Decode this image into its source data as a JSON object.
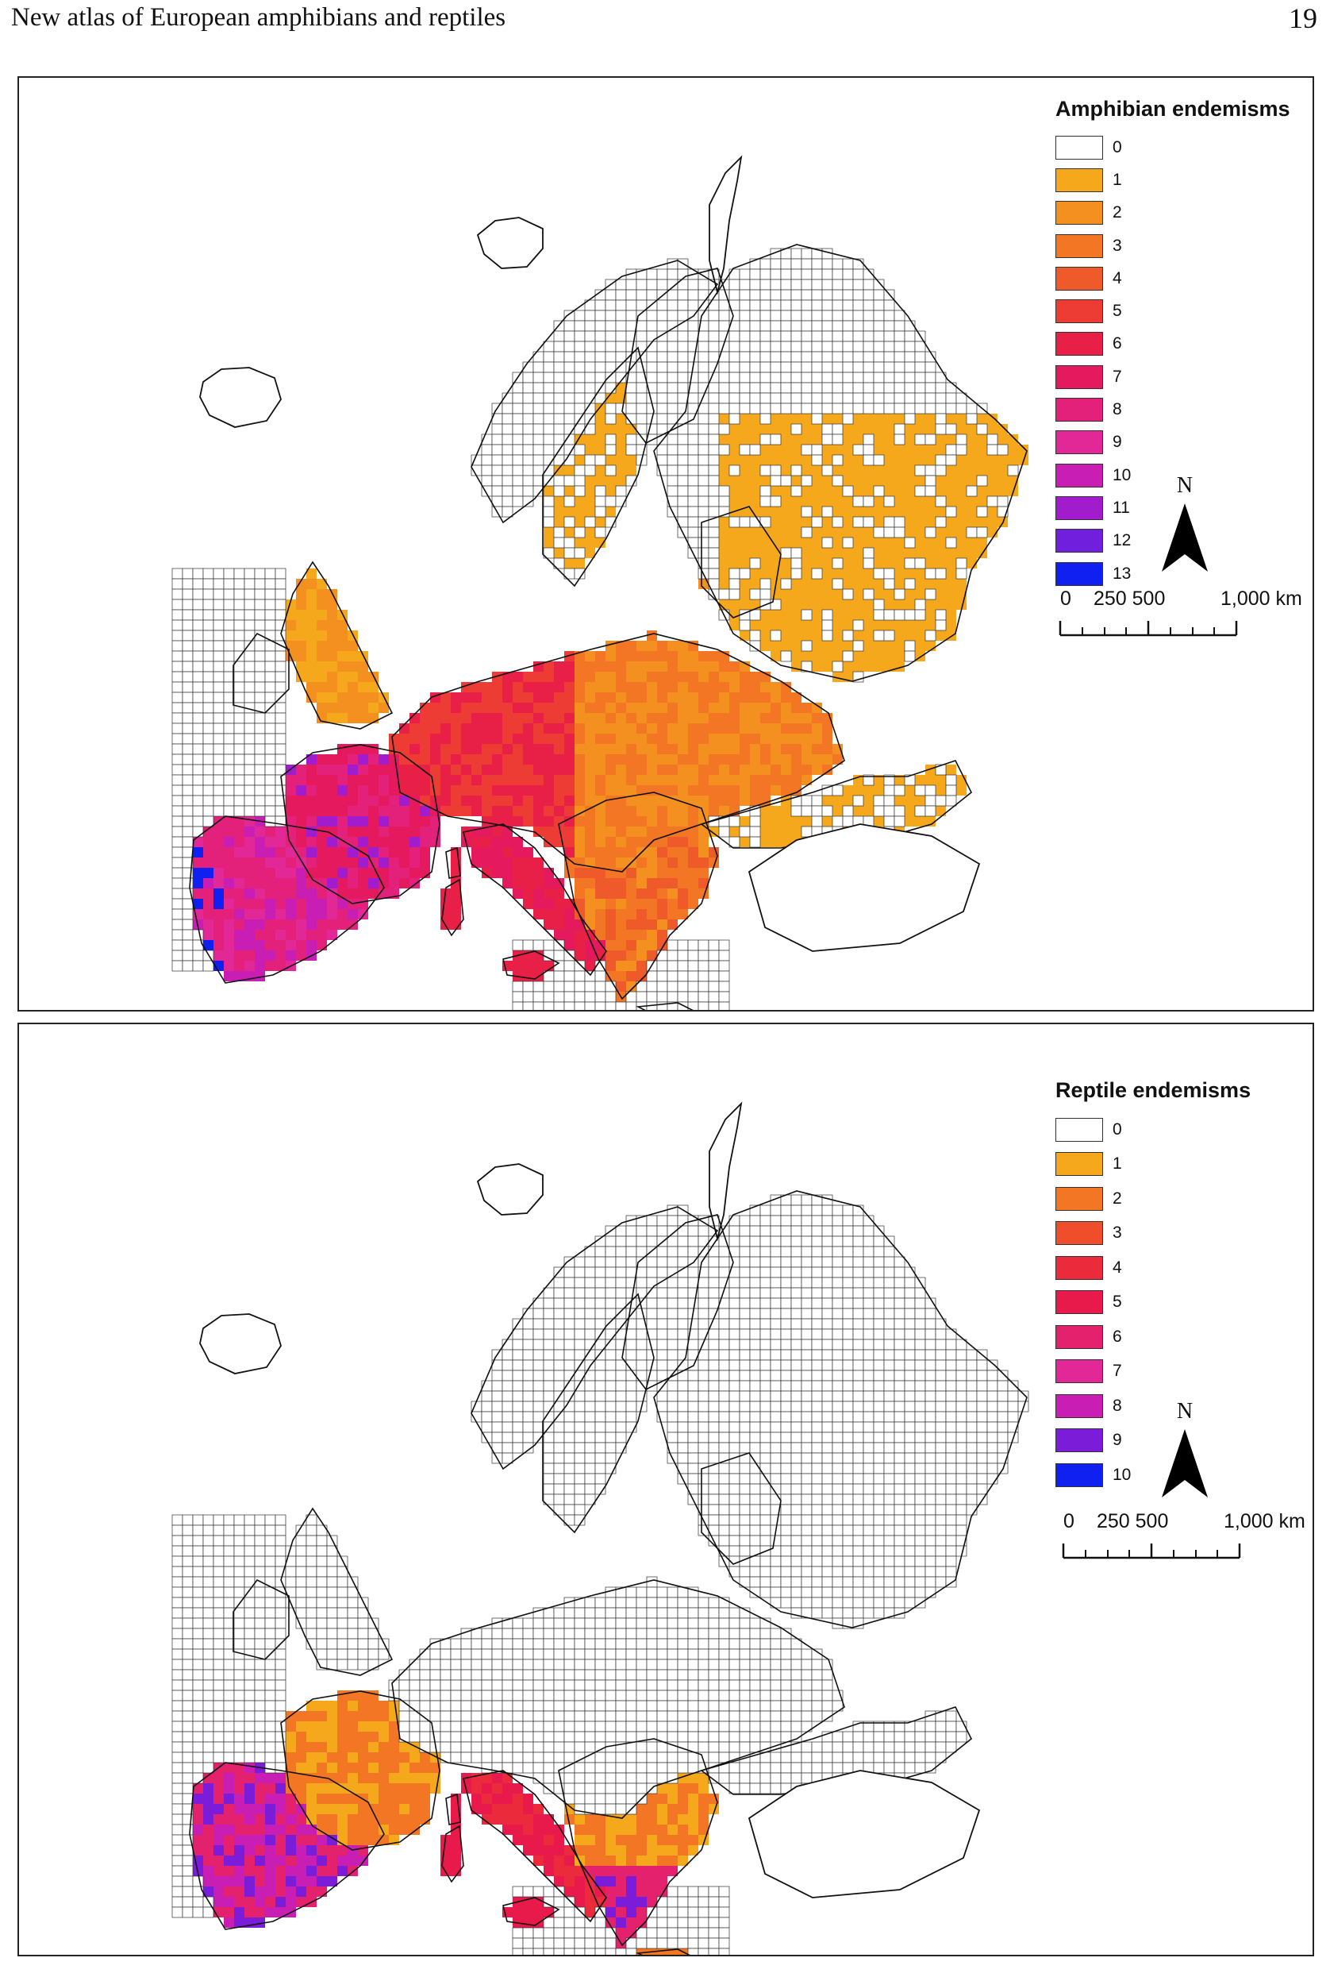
{
  "header": {
    "running_title": "New atlas of European amphibians and reptiles",
    "page_number": "19"
  },
  "maps": [
    {
      "legend_title": "Amphibian endemisms",
      "classes": [
        "0",
        "1",
        "2",
        "3",
        "4",
        "5",
        "6",
        "7",
        "8",
        "9",
        "10",
        "11",
        "12",
        "13"
      ],
      "colors": [
        "#ffffff",
        "#f5a81c",
        "#f39020",
        "#f27624",
        "#ef5a2a",
        "#ec3c34",
        "#e82048",
        "#e51a5e",
        "#e4217a",
        "#e12896",
        "#c81eb4",
        "#a01ccc",
        "#7020dc",
        "#1020f0"
      ],
      "north_label": "N",
      "scale_labels": [
        "0",
        "250 500",
        "1,000 km"
      ]
    },
    {
      "legend_title": "Reptile endemisms",
      "classes": [
        "0",
        "1",
        "2",
        "3",
        "4",
        "5",
        "6",
        "7",
        "8",
        "9",
        "10"
      ],
      "colors": [
        "#ffffff",
        "#f5a81c",
        "#f27624",
        "#ef4e2c",
        "#eb2a3c",
        "#e81a4c",
        "#e4216c",
        "#e12896",
        "#c81eb4",
        "#7a1cd8",
        "#1020f0"
      ],
      "north_label": "N",
      "scale_labels": [
        "0",
        "250 500",
        "1,000 km"
      ]
    }
  ]
}
